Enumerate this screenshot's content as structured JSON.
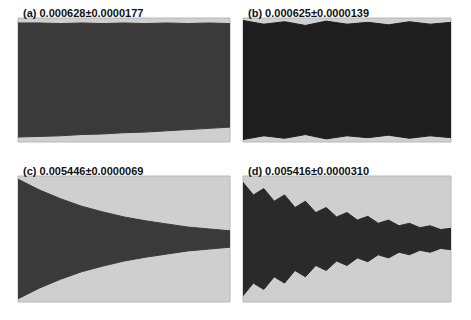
{
  "chart_data": [
    {
      "type": "band",
      "title": "(a) 0.000628±0.0000177",
      "x": [
        0,
        10,
        20,
        30,
        40,
        50,
        60,
        70,
        80,
        90,
        100
      ],
      "upper": [
        0.92,
        0.92,
        0.91,
        0.92,
        0.91,
        0.92,
        0.91,
        0.92,
        0.91,
        0.92,
        0.91
      ],
      "lower": [
        -0.92,
        -0.91,
        -0.9,
        -0.88,
        -0.87,
        -0.85,
        -0.84,
        -0.82,
        -0.8,
        -0.78,
        -0.76
      ],
      "xlim": [
        0,
        100
      ],
      "ylim": [
        -1,
        1
      ],
      "tick_labels": false,
      "color": "#3a3a3a"
    },
    {
      "type": "band",
      "title": "(b) 0.000625±0.0000139",
      "x": [
        0,
        10,
        20,
        30,
        40,
        50,
        60,
        70,
        80,
        90,
        100
      ],
      "upper": [
        0.96,
        0.9,
        0.94,
        0.88,
        0.95,
        0.9,
        0.93,
        0.89,
        0.94,
        0.9,
        0.93
      ],
      "lower": [
        -0.96,
        -0.9,
        -0.94,
        -0.88,
        -0.95,
        -0.9,
        -0.93,
        -0.89,
        -0.94,
        -0.9,
        -0.93
      ],
      "xlim": [
        0,
        100
      ],
      "ylim": [
        -1,
        1
      ],
      "tick_labels": false,
      "color": "#1e1e1e"
    },
    {
      "type": "band",
      "title": "(c) 0.005446±0.0000069",
      "x": [
        0,
        10,
        20,
        30,
        40,
        50,
        60,
        70,
        80,
        90,
        100
      ],
      "upper": [
        0.95,
        0.78,
        0.64,
        0.52,
        0.43,
        0.35,
        0.29,
        0.24,
        0.19,
        0.16,
        0.13
      ],
      "lower": [
        -0.95,
        -0.78,
        -0.64,
        -0.52,
        -0.43,
        -0.35,
        -0.29,
        -0.24,
        -0.19,
        -0.16,
        -0.13
      ],
      "xlim": [
        0,
        100
      ],
      "ylim": [
        -1,
        1
      ],
      "tick_labels": false,
      "color": "#3a3a3a"
    },
    {
      "type": "band",
      "title": "(d) 0.005416±0.0000310",
      "x": [
        0,
        5,
        10,
        15,
        20,
        25,
        30,
        35,
        40,
        45,
        50,
        55,
        60,
        65,
        70,
        75,
        80,
        85,
        90,
        95,
        100
      ],
      "upper": [
        0.9,
        0.7,
        0.8,
        0.6,
        0.7,
        0.5,
        0.6,
        0.42,
        0.5,
        0.35,
        0.42,
        0.3,
        0.36,
        0.25,
        0.3,
        0.21,
        0.25,
        0.18,
        0.21,
        0.15,
        0.17
      ],
      "lower": [
        -0.9,
        -0.7,
        -0.8,
        -0.6,
        -0.7,
        -0.5,
        -0.6,
        -0.42,
        -0.5,
        -0.35,
        -0.42,
        -0.3,
        -0.36,
        -0.25,
        -0.3,
        -0.21,
        -0.25,
        -0.18,
        -0.21,
        -0.15,
        -0.17
      ],
      "xlim": [
        0,
        100
      ],
      "ylim": [
        -1,
        1
      ],
      "tick_labels": false,
      "color": "#2a2a2a"
    }
  ]
}
